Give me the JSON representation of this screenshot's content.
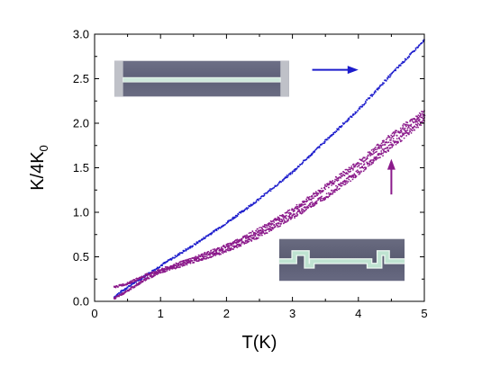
{
  "chart_data": {
    "type": "scatter",
    "xlabel": "T(K)",
    "ylabel_main": "K/4K",
    "ylabel_sub": "0",
    "xlim": [
      0,
      5
    ],
    "ylim": [
      0,
      3.0
    ],
    "x_ticks": [
      0,
      1,
      2,
      3,
      4,
      5
    ],
    "y_ticks": [
      0.0,
      0.5,
      1.0,
      1.5,
      2.0,
      2.5,
      3.0
    ],
    "x_tick_labels": [
      "0",
      "1",
      "2",
      "3",
      "4",
      "5"
    ],
    "y_tick_labels": [
      "0.0",
      "0.5",
      "1.0",
      "1.5",
      "2.0",
      "2.5",
      "3.0"
    ],
    "grid": false,
    "series": [
      {
        "color": "#1c1ccc",
        "x": [
          0.3,
          0.5,
          0.8,
          1.0,
          1.5,
          2.0,
          2.5,
          3.0,
          3.5,
          4.0,
          4.5,
          5.0
        ],
        "y": [
          0.05,
          0.16,
          0.3,
          0.4,
          0.63,
          0.88,
          1.15,
          1.45,
          1.8,
          2.15,
          2.55,
          2.93
        ]
      },
      {
        "color": "#8b1a8b",
        "x": [
          0.3,
          0.5,
          0.8,
          1.0,
          1.5,
          2.0,
          2.5,
          3.0,
          3.5,
          4.0,
          4.5,
          5.0
        ],
        "y": [
          0.16,
          0.2,
          0.3,
          0.35,
          0.48,
          0.62,
          0.8,
          1.02,
          1.28,
          1.55,
          1.85,
          2.12
        ]
      },
      {
        "color": "#8b1a8b",
        "x": [
          0.3,
          0.5,
          0.8,
          1.0,
          1.5,
          2.0,
          2.5,
          3.0,
          3.5,
          4.0,
          4.5,
          5.0
        ],
        "y": [
          0.03,
          0.12,
          0.26,
          0.33,
          0.45,
          0.57,
          0.74,
          0.95,
          1.18,
          1.45,
          1.75,
          2.05
        ]
      }
    ],
    "arrows": [
      {
        "color": "#1c1ccc",
        "direction": "right",
        "x_from": 3.3,
        "x_to": 4.0,
        "y": 2.6
      },
      {
        "color": "#8b1a8b",
        "direction": "up",
        "x": 4.5,
        "y_from": 1.2,
        "y_to": 1.6
      }
    ],
    "insets": [
      {
        "name": "straight-wire-image",
        "x0": 0.3,
        "x1": 2.95,
        "y0": 2.3,
        "y1": 2.7
      },
      {
        "name": "meander-wire-image",
        "x0": 2.8,
        "x1": 4.7,
        "y0": 0.23,
        "y1": 0.7
      }
    ]
  }
}
